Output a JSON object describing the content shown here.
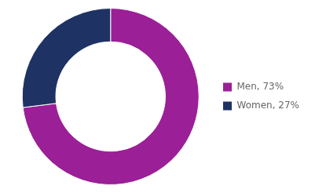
{
  "chart_data": {
    "type": "doughnut",
    "categories": [
      "Men, 73%",
      "Women, 27%"
    ],
    "values": [
      73,
      27
    ],
    "colors": [
      "#9b1f97",
      "#1e3264"
    ],
    "legend": "right"
  }
}
